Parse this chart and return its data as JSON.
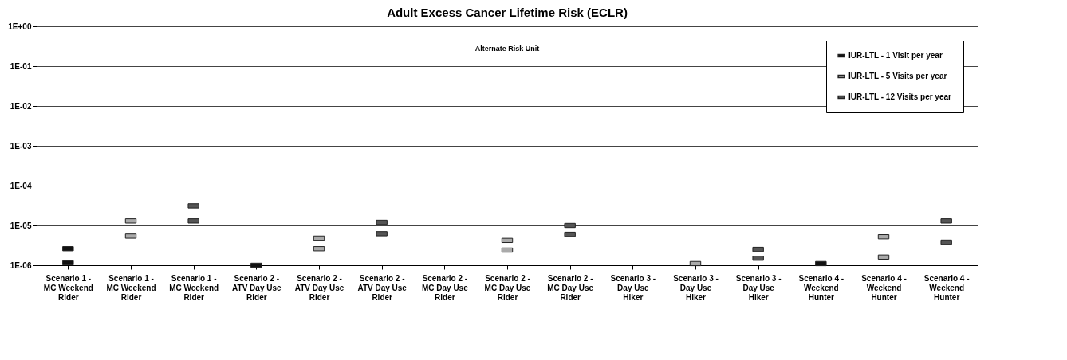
{
  "chart_data": {
    "type": "scatter",
    "title": "Adult Excess Cancer Lifetime Risk (ECLR)",
    "categories": [
      "Scenario 1 - MC Weekend Rider",
      "Scenario 1 - MC Weekend Rider",
      "Scenario 1 - MC Weekend Rider",
      "Scenario 2 - ATV Day Use Rider",
      "Scenario 2 - ATV Day Use Rider",
      "Scenario 2 - ATV Day Use Rider",
      "Scenario 2 - MC Day Use Rider",
      "Scenario 2 - MC Day Use Rider",
      "Scenario 2 - MC Day Use Rider",
      "Scenario 3 - Day Use Hiker",
      "Scenario 3 - Day Use Hiker",
      "Scenario 3 - Day Use Hiker",
      "Scenario 4 - Weekend Hunter",
      "Scenario 4 - Weekend Hunter",
      "Scenario 4 - Weekend Hunter"
    ],
    "series": [
      {
        "name": "IUR-LTL - 1 Visit per year",
        "color": "#111111",
        "values": [
          2.6e-06,
          null,
          null,
          1e-06,
          null,
          null,
          null,
          null,
          null,
          null,
          null,
          null,
          1.1e-06,
          null,
          null
        ]
      },
      {
        "name": "IUR-LTL - 5 Visits per year",
        "color": "#aaaaaa",
        "values": [
          null,
          1.3e-05,
          null,
          null,
          4.8e-06,
          null,
          null,
          4.2e-06,
          null,
          null,
          1.1e-06,
          null,
          null,
          5.2e-06,
          null
        ]
      },
      {
        "name": "IUR-LTL - 12 Visits per year",
        "color": "#555555",
        "values": [
          null,
          null,
          3.1e-05,
          null,
          null,
          1.2e-05,
          null,
          null,
          1e-05,
          null,
          null,
          2.5e-06,
          null,
          null,
          1.3e-05
        ]
      },
      {
        "color": "#111111",
        "values": [
          1.15e-06,
          null,
          null,
          null,
          null,
          null,
          null,
          null,
          null,
          null,
          null,
          null,
          null,
          null,
          null
        ]
      },
      {
        "color": "#aaaaaa",
        "values": [
          null,
          5.4e-06,
          null,
          null,
          2.6e-06,
          null,
          null,
          2.4e-06,
          null,
          null,
          null,
          null,
          null,
          1.6e-06,
          null
        ]
      },
      {
        "color": "#555555",
        "values": [
          null,
          null,
          1.3e-05,
          null,
          null,
          6.2e-06,
          null,
          null,
          6e-06,
          null,
          null,
          1.5e-06,
          null,
          null,
          3.8e-06
        ]
      }
    ],
    "ylim": [
      1e-06,
      1
    ],
    "yticks": [
      {
        "value": 1e-06,
        "label": "1E-06"
      },
      {
        "value": 1e-05,
        "label": "1E-05"
      },
      {
        "value": 0.0001,
        "label": "1E-04"
      },
      {
        "value": 0.001,
        "label": "1E-03"
      },
      {
        "value": 0.01,
        "label": "1E-02"
      },
      {
        "value": 0.1,
        "label": "1E-01"
      },
      {
        "value": 1,
        "label": "1E+00"
      }
    ],
    "log": true,
    "grid": "y",
    "legend": "top right",
    "marker": "square",
    "annotations": [
      "Alternate Risk Unit"
    ]
  }
}
